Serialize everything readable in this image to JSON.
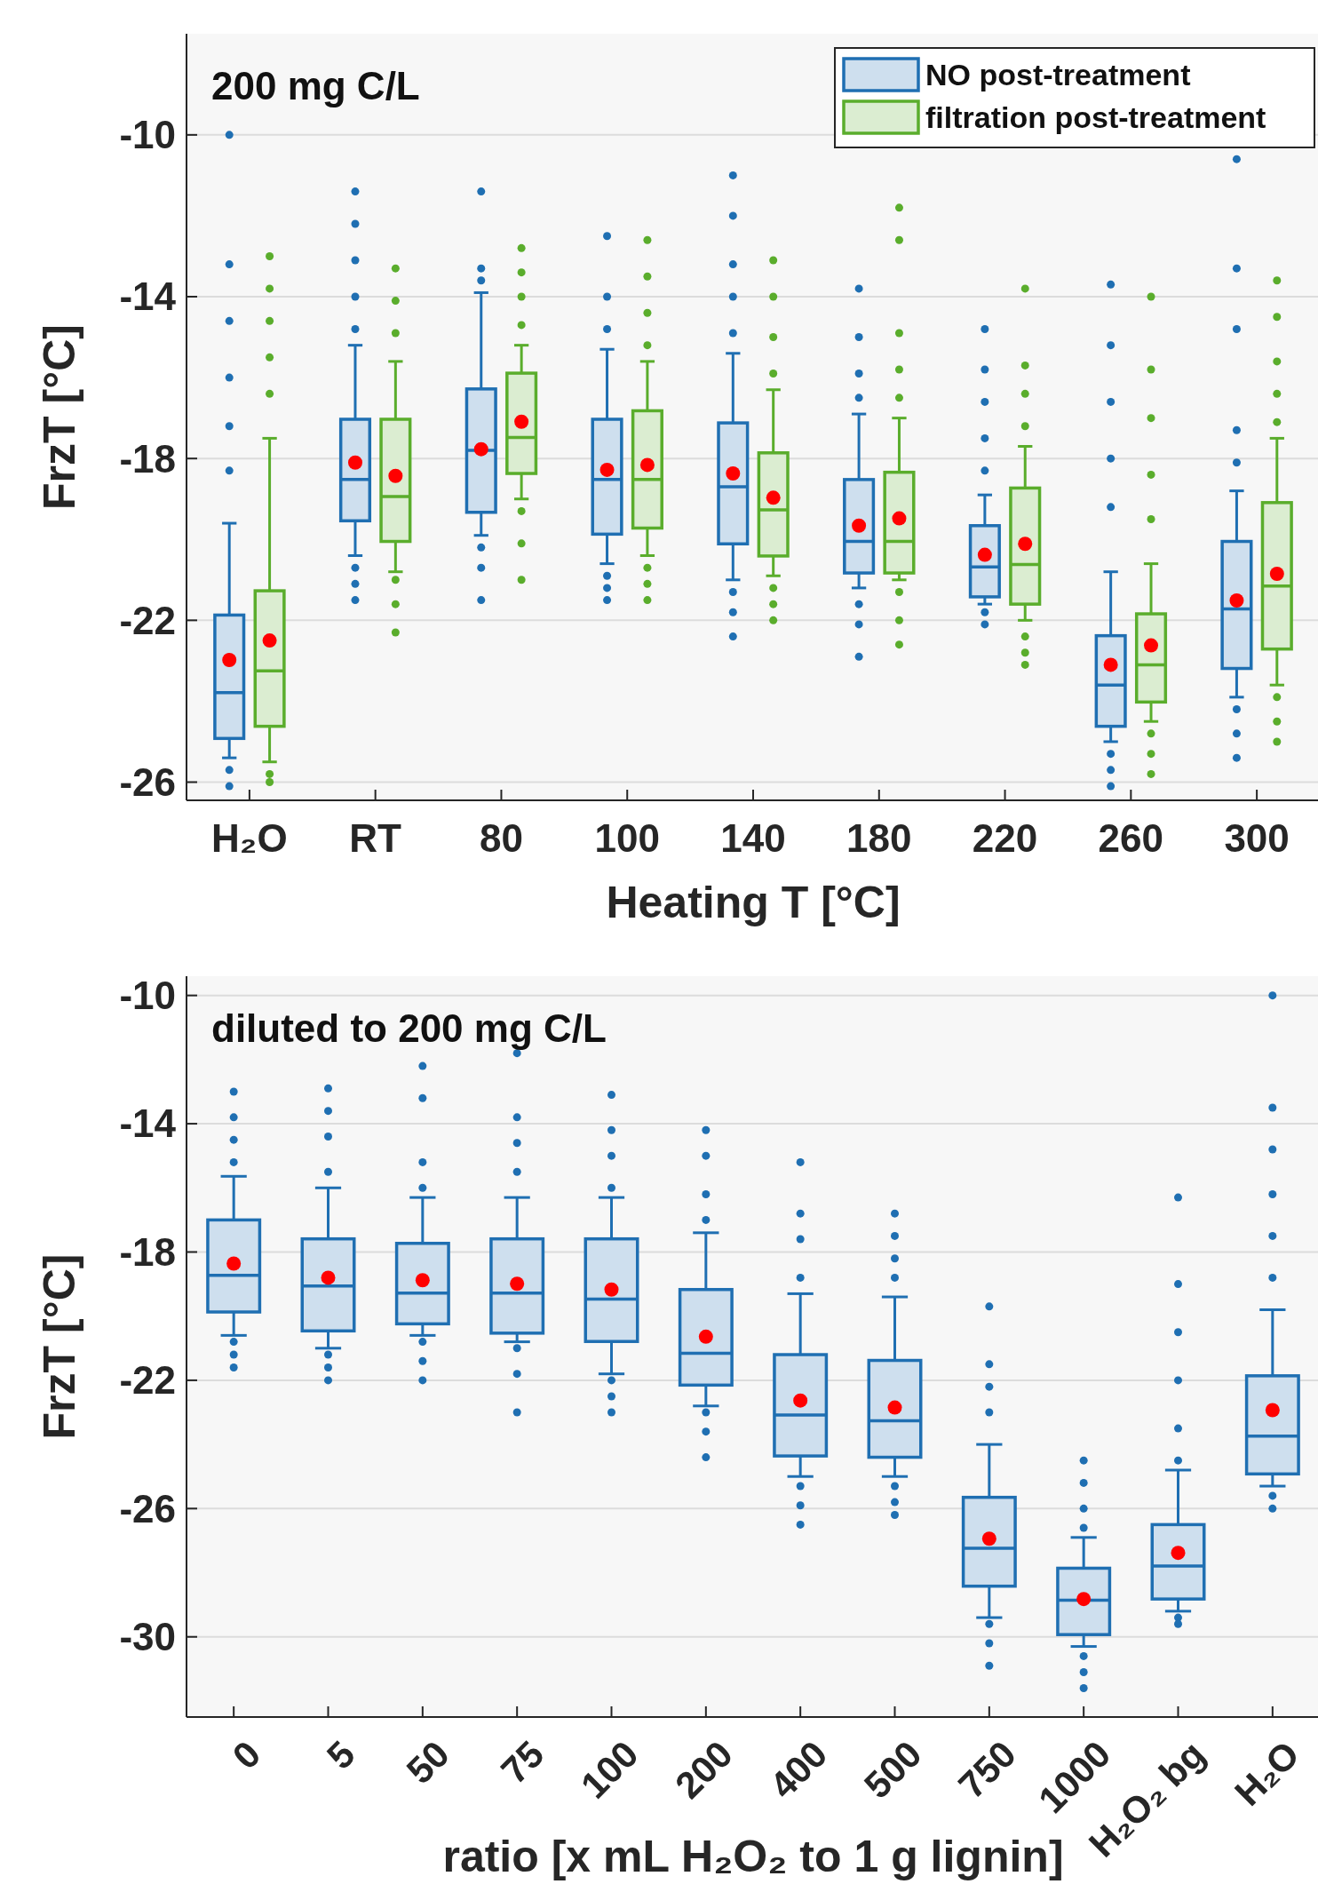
{
  "chart_data": [
    {
      "type": "box",
      "categories": [
        "H₂O",
        "RT",
        "80",
        "100",
        "140",
        "180",
        "220",
        "260",
        "300"
      ],
      "xlabel": "Heating T [°C]",
      "ylabel": "FrzT [°C]",
      "ylim": [
        -26.45,
        -7.5
      ],
      "yticks": [
        -26,
        -22,
        -18,
        -14,
        -10
      ],
      "grid": "y",
      "legend": "top right",
      "annotations": [
        "200 mg C/L"
      ],
      "series": [
        {
          "name": "NO post-treatment",
          "color": "#1f6fb2",
          "boxes": [
            {
              "low": -25.4,
              "q1": -24.92,
              "median": -23.79,
              "q3": -21.87,
              "high": -19.6,
              "mean": -22.98,
              "outliers": [
                -10.0,
                -13.2,
                -14.6,
                -16.0,
                -17.2,
                -18.3,
                -25.7,
                -26.1
              ]
            },
            {
              "low": -20.4,
              "q1": -19.54,
              "median": -18.52,
              "q3": -17.03,
              "high": -15.2,
              "mean": -18.1,
              "outliers": [
                -11.4,
                -12.2,
                -13.1,
                -14.0,
                -14.8,
                -20.7,
                -21.1,
                -21.5
              ]
            },
            {
              "low": -19.9,
              "q1": -19.33,
              "median": -17.8,
              "q3": -16.28,
              "high": -13.9,
              "mean": -17.77,
              "outliers": [
                -11.4,
                -13.3,
                -13.6,
                -20.2,
                -20.7,
                -21.5
              ]
            },
            {
              "low": -20.6,
              "q1": -19.87,
              "median": -18.52,
              "q3": -17.03,
              "high": -15.3,
              "mean": -18.28,
              "outliers": [
                -12.5,
                -14.0,
                -14.8,
                -20.9,
                -21.2,
                -21.5
              ]
            },
            {
              "low": -21.0,
              "q1": -20.11,
              "median": -18.7,
              "q3": -17.12,
              "high": -15.4,
              "mean": -18.37,
              "outliers": [
                -11.0,
                -12.0,
                -13.2,
                -14.0,
                -14.9,
                -21.3,
                -21.8,
                -22.4
              ]
            },
            {
              "low": -21.2,
              "q1": -20.83,
              "median": -20.05,
              "q3": -18.52,
              "high": -16.9,
              "mean": -19.66,
              "outliers": [
                -13.8,
                -15.0,
                -15.9,
                -16.5,
                -21.6,
                -22.1,
                -22.9
              ]
            },
            {
              "low": -21.6,
              "q1": -21.42,
              "median": -20.68,
              "q3": -19.66,
              "high": -18.9,
              "mean": -20.38,
              "outliers": [
                -14.8,
                -15.8,
                -16.6,
                -17.5,
                -18.3,
                -21.8,
                -22.1
              ]
            },
            {
              "low": -25.0,
              "q1": -24.62,
              "median": -23.6,
              "q3": -22.38,
              "high": -20.8,
              "mean": -23.1,
              "outliers": [
                -13.7,
                -15.2,
                -16.6,
                -18.0,
                -19.2,
                -25.3,
                -25.7,
                -26.1
              ]
            },
            {
              "low": -23.9,
              "q1": -23.19,
              "median": -21.72,
              "q3": -20.05,
              "high": -18.8,
              "mean": -21.51,
              "outliers": [
                -10.6,
                -13.3,
                -14.8,
                -17.3,
                -18.1,
                -24.2,
                -24.8,
                -25.4
              ]
            }
          ]
        },
        {
          "name": "filtration post-treatment",
          "color": "#5aad2c",
          "boxes": [
            {
              "low": -25.5,
              "q1": -24.62,
              "median": -23.25,
              "q3": -21.27,
              "high": -17.5,
              "mean": -22.5,
              "outliers": [
                -13.0,
                -13.8,
                -14.6,
                -15.5,
                -16.4,
                -25.8,
                -26.0
              ]
            },
            {
              "low": -20.8,
              "q1": -20.05,
              "median": -18.94,
              "q3": -17.03,
              "high": -15.6,
              "mean": -18.43,
              "outliers": [
                -13.3,
                -14.1,
                -14.9,
                -21.0,
                -21.6,
                -22.3
              ]
            },
            {
              "low": -19.0,
              "q1": -18.37,
              "median": -17.48,
              "q3": -15.89,
              "high": -15.2,
              "mean": -17.09,
              "outliers": [
                -12.8,
                -13.4,
                -14.0,
                -14.7,
                -19.3,
                -20.1,
                -21.0
              ]
            },
            {
              "low": -20.4,
              "q1": -19.72,
              "median": -18.52,
              "q3": -16.82,
              "high": -15.6,
              "mean": -18.16,
              "outliers": [
                -12.6,
                -13.5,
                -14.4,
                -15.2,
                -20.7,
                -21.1,
                -21.5
              ]
            },
            {
              "low": -20.9,
              "q1": -20.41,
              "median": -19.27,
              "q3": -17.86,
              "high": -16.3,
              "mean": -18.97,
              "outliers": [
                -13.1,
                -14.0,
                -15.0,
                -15.9,
                -21.2,
                -21.6,
                -22.0
              ]
            },
            {
              "low": -21.0,
              "q1": -20.83,
              "median": -20.05,
              "q3": -18.34,
              "high": -17.0,
              "mean": -19.48,
              "outliers": [
                -11.8,
                -12.6,
                -14.9,
                -15.8,
                -16.5,
                -21.3,
                -22.0,
                -22.6
              ]
            },
            {
              "low": -22.0,
              "q1": -21.6,
              "median": -20.62,
              "q3": -18.73,
              "high": -17.7,
              "mean": -20.11,
              "outliers": [
                -13.8,
                -15.7,
                -16.4,
                -17.2,
                -22.4,
                -22.8,
                -23.1
              ]
            },
            {
              "low": -24.5,
              "q1": -24.02,
              "median": -23.1,
              "q3": -21.84,
              "high": -20.6,
              "mean": -22.62,
              "outliers": [
                -14.0,
                -15.8,
                -17.0,
                -18.4,
                -19.5,
                -24.8,
                -25.3,
                -25.8
              ]
            },
            {
              "low": -23.6,
              "q1": -22.71,
              "median": -21.15,
              "q3": -19.09,
              "high": -17.5,
              "mean": -20.85,
              "outliers": [
                -13.6,
                -14.5,
                -15.6,
                -16.4,
                -17.1,
                -23.9,
                -24.5,
                -25.0
              ]
            }
          ]
        }
      ]
    },
    {
      "type": "box",
      "categories": [
        "0",
        "5",
        "50",
        "75",
        "100",
        "200",
        "400",
        "500",
        "750",
        "1000",
        "H₂O₂ bg",
        "H₂O"
      ],
      "xlabel": "ratio [x mL H₂O₂ to 1 g lignin]",
      "ylabel": "FrzT [°C]",
      "ylim": [
        -32.5,
        -9.4
      ],
      "yticks": [
        -30,
        -26,
        -22,
        -18,
        -14,
        -10
      ],
      "grid": "y",
      "annotations": [
        "diluted to 200 mg C/L"
      ],
      "series": [
        {
          "color": "#1f6fb2",
          "boxes": [
            {
              "low": -20.6,
              "q1": -19.87,
              "median": -18.73,
              "q3": -17.0,
              "high": -15.64,
              "mean": -18.36,
              "outliers": [
                -13.0,
                -13.8,
                -14.5,
                -15.2,
                -20.8,
                -21.2,
                -21.6
              ]
            },
            {
              "low": -21.0,
              "q1": -20.46,
              "median": -19.06,
              "q3": -17.59,
              "high": -16.0,
              "mean": -18.8,
              "outliers": [
                -12.9,
                -13.6,
                -14.4,
                -15.5,
                -21.2,
                -21.6,
                -22.0
              ]
            },
            {
              "low": -20.6,
              "q1": -20.24,
              "median": -19.28,
              "q3": -17.73,
              "high": -16.3,
              "mean": -18.88,
              "outliers": [
                -12.2,
                -13.2,
                -15.2,
                -16.0,
                -20.8,
                -21.4,
                -22.0
              ]
            },
            {
              "low": -20.8,
              "q1": -20.53,
              "median": -19.28,
              "q3": -17.59,
              "high": -16.3,
              "mean": -18.99,
              "outliers": [
                -11.8,
                -13.8,
                -14.6,
                -15.5,
                -21.0,
                -21.8,
                -23.0
              ]
            },
            {
              "low": -21.8,
              "q1": -20.79,
              "median": -19.47,
              "q3": -17.59,
              "high": -16.3,
              "mean": -19.17,
              "outliers": [
                -13.1,
                -14.2,
                -15.0,
                -16.0,
                -22.0,
                -22.5,
                -23.0
              ]
            },
            {
              "low": -22.8,
              "q1": -22.15,
              "median": -21.16,
              "q3": -19.17,
              "high": -17.4,
              "mean": -20.64,
              "outliers": [
                -14.2,
                -15.0,
                -16.2,
                -17.0,
                -23.0,
                -23.6,
                -24.4
              ]
            },
            {
              "low": -25.0,
              "q1": -24.36,
              "median": -23.08,
              "q3": -21.2,
              "high": -19.3,
              "mean": -22.63,
              "outliers": [
                -15.2,
                -16.8,
                -17.6,
                -18.8,
                -25.3,
                -25.9,
                -26.5
              ]
            },
            {
              "low": -25.0,
              "q1": -24.4,
              "median": -23.26,
              "q3": -21.38,
              "high": -19.4,
              "mean": -22.85,
              "outliers": [
                -16.8,
                -17.5,
                -18.2,
                -18.8,
                -25.3,
                -25.8,
                -26.2
              ]
            },
            {
              "low": -29.4,
              "q1": -28.42,
              "median": -27.24,
              "q3": -25.65,
              "high": -24.0,
              "mean": -26.94,
              "outliers": [
                -19.7,
                -21.5,
                -22.2,
                -23.0,
                -29.6,
                -30.2,
                -30.9
              ]
            },
            {
              "low": -30.3,
              "q1": -29.93,
              "median": -28.86,
              "q3": -27.86,
              "high": -26.9,
              "mean": -28.82,
              "outliers": [
                -24.5,
                -25.2,
                -26.0,
                -26.6,
                -30.6,
                -31.1,
                -31.6
              ]
            },
            {
              "low": -29.2,
              "q1": -28.82,
              "median": -27.79,
              "q3": -26.5,
              "high": -24.8,
              "mean": -27.38,
              "outliers": [
                -16.3,
                -19.0,
                -20.5,
                -22.0,
                -23.5,
                -24.5,
                -29.4,
                -29.6
              ]
            },
            {
              "low": -25.3,
              "q1": -24.92,
              "median": -23.74,
              "q3": -21.86,
              "high": -19.8,
              "mean": -22.93,
              "outliers": [
                -10.0,
                -13.5,
                -14.8,
                -16.2,
                -17.5,
                -18.8,
                -25.6,
                -26.0
              ]
            }
          ]
        }
      ]
    }
  ]
}
